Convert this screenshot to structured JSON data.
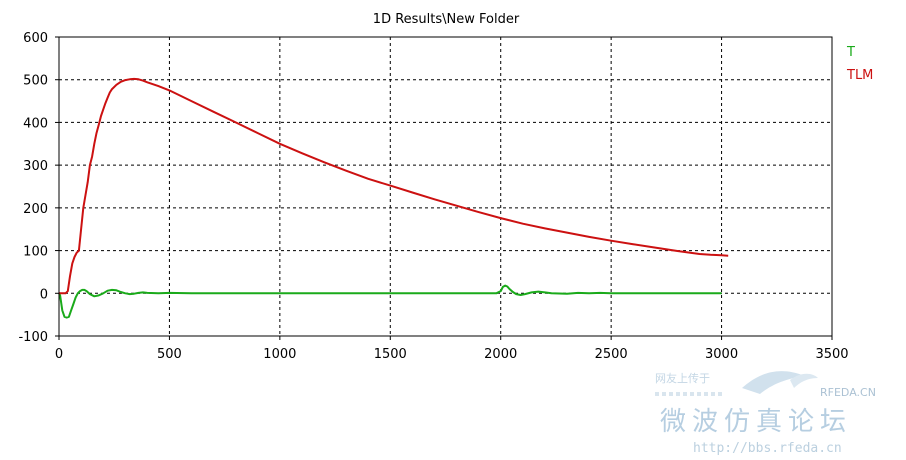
{
  "chart_data": {
    "type": "line",
    "title": "1D Results\\New Folder",
    "xlim": [
      0,
      3500
    ],
    "ylim": [
      -100,
      600
    ],
    "x_ticks": [
      0,
      500,
      1000,
      1500,
      2000,
      2500,
      3000,
      3500
    ],
    "y_ticks": [
      -100,
      0,
      100,
      200,
      300,
      400,
      500,
      600
    ],
    "x_tick_labels": [
      "0",
      "500",
      "1000",
      "1500",
      "2000",
      "2500",
      "3000",
      "3500"
    ],
    "y_tick_labels": [
      "-100",
      "0",
      "100",
      "200",
      "300",
      "400",
      "500",
      "600"
    ],
    "grid": true,
    "grid_style": "dashed",
    "legend_position": "outside-right-top",
    "series": [
      {
        "name": "T",
        "color": "#1aaa1a",
        "points": [
          [
            0,
            0
          ],
          [
            5,
            -5
          ],
          [
            15,
            -40
          ],
          [
            25,
            -55
          ],
          [
            35,
            -57
          ],
          [
            45,
            -55
          ],
          [
            55,
            -40
          ],
          [
            65,
            -25
          ],
          [
            75,
            -10
          ],
          [
            85,
            0
          ],
          [
            95,
            5
          ],
          [
            105,
            8
          ],
          [
            115,
            8
          ],
          [
            125,
            5
          ],
          [
            140,
            -2
          ],
          [
            160,
            -7
          ],
          [
            180,
            -5
          ],
          [
            200,
            0
          ],
          [
            220,
            6
          ],
          [
            240,
            8
          ],
          [
            260,
            7
          ],
          [
            280,
            3
          ],
          [
            300,
            0
          ],
          [
            320,
            -2
          ],
          [
            340,
            -1
          ],
          [
            360,
            1
          ],
          [
            380,
            2
          ],
          [
            400,
            1
          ],
          [
            450,
            0
          ],
          [
            500,
            1
          ],
          [
            600,
            0
          ],
          [
            800,
            0
          ],
          [
            1000,
            0
          ],
          [
            1200,
            0
          ],
          [
            1400,
            0
          ],
          [
            1600,
            0
          ],
          [
            1800,
            0
          ],
          [
            1980,
            0
          ],
          [
            2000,
            5
          ],
          [
            2010,
            15
          ],
          [
            2020,
            18
          ],
          [
            2030,
            16
          ],
          [
            2040,
            10
          ],
          [
            2055,
            3
          ],
          [
            2070,
            -2
          ],
          [
            2090,
            -4
          ],
          [
            2110,
            -2
          ],
          [
            2140,
            2
          ],
          [
            2170,
            4
          ],
          [
            2200,
            2
          ],
          [
            2230,
            0
          ],
          [
            2300,
            -1
          ],
          [
            2350,
            1
          ],
          [
            2400,
            0
          ],
          [
            2450,
            1
          ],
          [
            2500,
            0
          ],
          [
            2700,
            0
          ],
          [
            2900,
            0
          ],
          [
            3000,
            0
          ]
        ]
      },
      {
        "name": "TLM",
        "color": "#cc1111",
        "points": [
          [
            0,
            0
          ],
          [
            30,
            0
          ],
          [
            40,
            5
          ],
          [
            50,
            40
          ],
          [
            60,
            70
          ],
          [
            70,
            85
          ],
          [
            80,
            95
          ],
          [
            90,
            100
          ],
          [
            100,
            150
          ],
          [
            110,
            200
          ],
          [
            120,
            230
          ],
          [
            130,
            260
          ],
          [
            140,
            300
          ],
          [
            150,
            320
          ],
          [
            160,
            350
          ],
          [
            170,
            375
          ],
          [
            180,
            395
          ],
          [
            190,
            415
          ],
          [
            200,
            430
          ],
          [
            210,
            445
          ],
          [
            220,
            458
          ],
          [
            230,
            470
          ],
          [
            240,
            478
          ],
          [
            260,
            488
          ],
          [
            280,
            495
          ],
          [
            300,
            499
          ],
          [
            320,
            501
          ],
          [
            340,
            502
          ],
          [
            360,
            501
          ],
          [
            380,
            498
          ],
          [
            400,
            494
          ],
          [
            450,
            485
          ],
          [
            500,
            475
          ],
          [
            600,
            450
          ],
          [
            700,
            425
          ],
          [
            800,
            400
          ],
          [
            900,
            375
          ],
          [
            1000,
            350
          ],
          [
            1100,
            328
          ],
          [
            1200,
            307
          ],
          [
            1300,
            287
          ],
          [
            1400,
            268
          ],
          [
            1500,
            252
          ],
          [
            1600,
            236
          ],
          [
            1700,
            220
          ],
          [
            1800,
            205
          ],
          [
            1900,
            190
          ],
          [
            2000,
            176
          ],
          [
            2100,
            163
          ],
          [
            2200,
            152
          ],
          [
            2300,
            142
          ],
          [
            2400,
            132
          ],
          [
            2500,
            123
          ],
          [
            2600,
            115
          ],
          [
            2700,
            107
          ],
          [
            2800,
            99
          ],
          [
            2900,
            92
          ],
          [
            2950,
            90
          ],
          [
            3000,
            89
          ],
          [
            3030,
            88
          ]
        ]
      }
    ]
  },
  "watermark": {
    "small_text": "网友上传于",
    "brand": "RFEDA.CN",
    "big_text": "微波仿真论坛",
    "url": "http://bbs.rfeda.cn"
  }
}
